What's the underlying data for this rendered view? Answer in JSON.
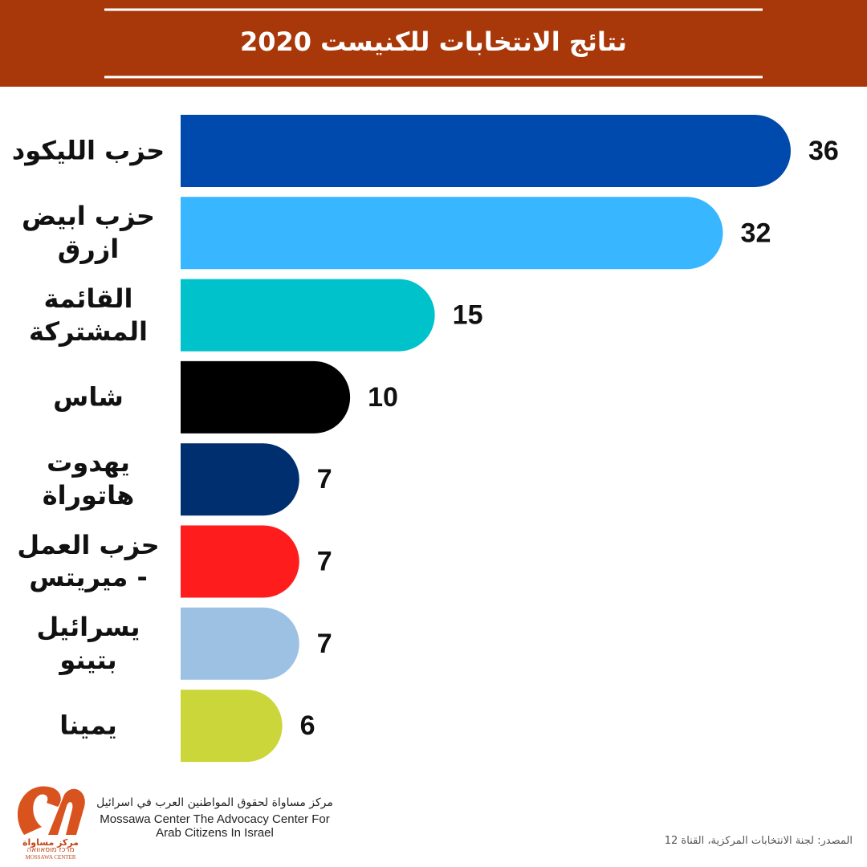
{
  "chart_data": {
    "type": "bar",
    "orientation": "horizontal",
    "title": "نتائج الانتخابات للكنيست 2020",
    "categories": [
      "حزب الليكود",
      "حزب ابيض ازرق",
      "القائمة المشتركة",
      "شاس",
      "يهدوت هاتوراة",
      "حزب العمل - ميريتس",
      "يسرائيل بتينو",
      "يمينا"
    ],
    "values": [
      36,
      32,
      15,
      10,
      7,
      7,
      7,
      6
    ],
    "colors": [
      "#004aad",
      "#38b6ff",
      "#00c2cb",
      "#000000",
      "#002f6f",
      "#ff1c1c",
      "#9dc1e3",
      "#cbd63a"
    ]
  },
  "footer": {
    "org_arabic": "مركز مساواة لحقوق المواطنين العرب في اسرائيل",
    "org_english_1": "Mossawa Center The Advocacy Center For",
    "org_english_2": "Arab Citizens In Israel",
    "logo_arabic": "مركز مساواة",
    "logo_hebrew": "מרכז מוסאוואה",
    "logo_english": "MOSSAWA CENTER",
    "source": "المصدر: لجنة الانتخابات المركزية، القناة 12"
  }
}
